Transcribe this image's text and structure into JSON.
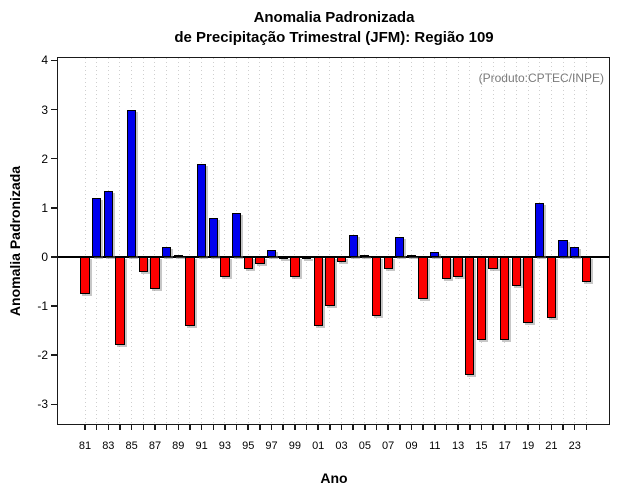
{
  "title": {
    "line1": "Anomalia Padronizada",
    "line2": "de Precipitação Trimestral (JFM): Região 109"
  },
  "annotation": "(Produto:CPTEC/INPE)",
  "axes": {
    "x_label": "Ano",
    "y_label": "Anomalia Padronizada"
  },
  "chart_data": {
    "type": "bar",
    "title": "Anomalia Padronizada de Precipitação Trimestral (JFM): Região 109",
    "xlabel": "Ano",
    "ylabel": "Anomalia Padronizada",
    "ylim": [
      -3.4,
      4
    ],
    "grid": "vertical dotted gridlines at every year tick",
    "legend": "none",
    "annotation": "(Produto:CPTEC/INPE)",
    "y_ticks": [
      "4",
      "3",
      "2",
      "1",
      "0",
      "-1",
      "-2",
      "-3"
    ],
    "x_tick_labels": [
      "81",
      "83",
      "85",
      "87",
      "89",
      "91",
      "93",
      "95",
      "97",
      "99",
      "01",
      "03",
      "05",
      "07",
      "09",
      "11",
      "13",
      "15",
      "17",
      "19",
      "21",
      "23"
    ],
    "categories": [
      "81",
      "82",
      "83",
      "84",
      "85",
      "86",
      "87",
      "88",
      "89",
      "90",
      "91",
      "92",
      "93",
      "94",
      "95",
      "96",
      "97",
      "98",
      "99",
      "00",
      "01",
      "02",
      "03",
      "04",
      "05",
      "06",
      "07",
      "08",
      "09",
      "10",
      "11",
      "12",
      "13",
      "14",
      "15",
      "16",
      "17",
      "18",
      "19",
      "20",
      "21",
      "22",
      "23",
      "24"
    ],
    "values": [
      -0.75,
      1.2,
      1.35,
      -1.8,
      3.0,
      -0.3,
      -0.65,
      0.2,
      0.05,
      -1.4,
      1.9,
      0.8,
      -0.4,
      0.9,
      -0.25,
      -0.15,
      0.15,
      -0.05,
      -0.4,
      -0.05,
      -1.4,
      -1.0,
      -0.1,
      0.45,
      0.05,
      -1.2,
      -0.25,
      0.4,
      0.05,
      -0.85,
      0.1,
      -0.45,
      -0.4,
      -2.4,
      -1.7,
      -0.25,
      -1.7,
      -0.6,
      -1.35,
      1.1,
      -1.25,
      0.35,
      0.2,
      -0.5
    ],
    "positive_color": "#0000EE",
    "negative_color": "#FB0000",
    "bar_border_color": "#000000",
    "gridline_color": "#cfcfcf",
    "annotation_color": "#7b7b7b"
  }
}
